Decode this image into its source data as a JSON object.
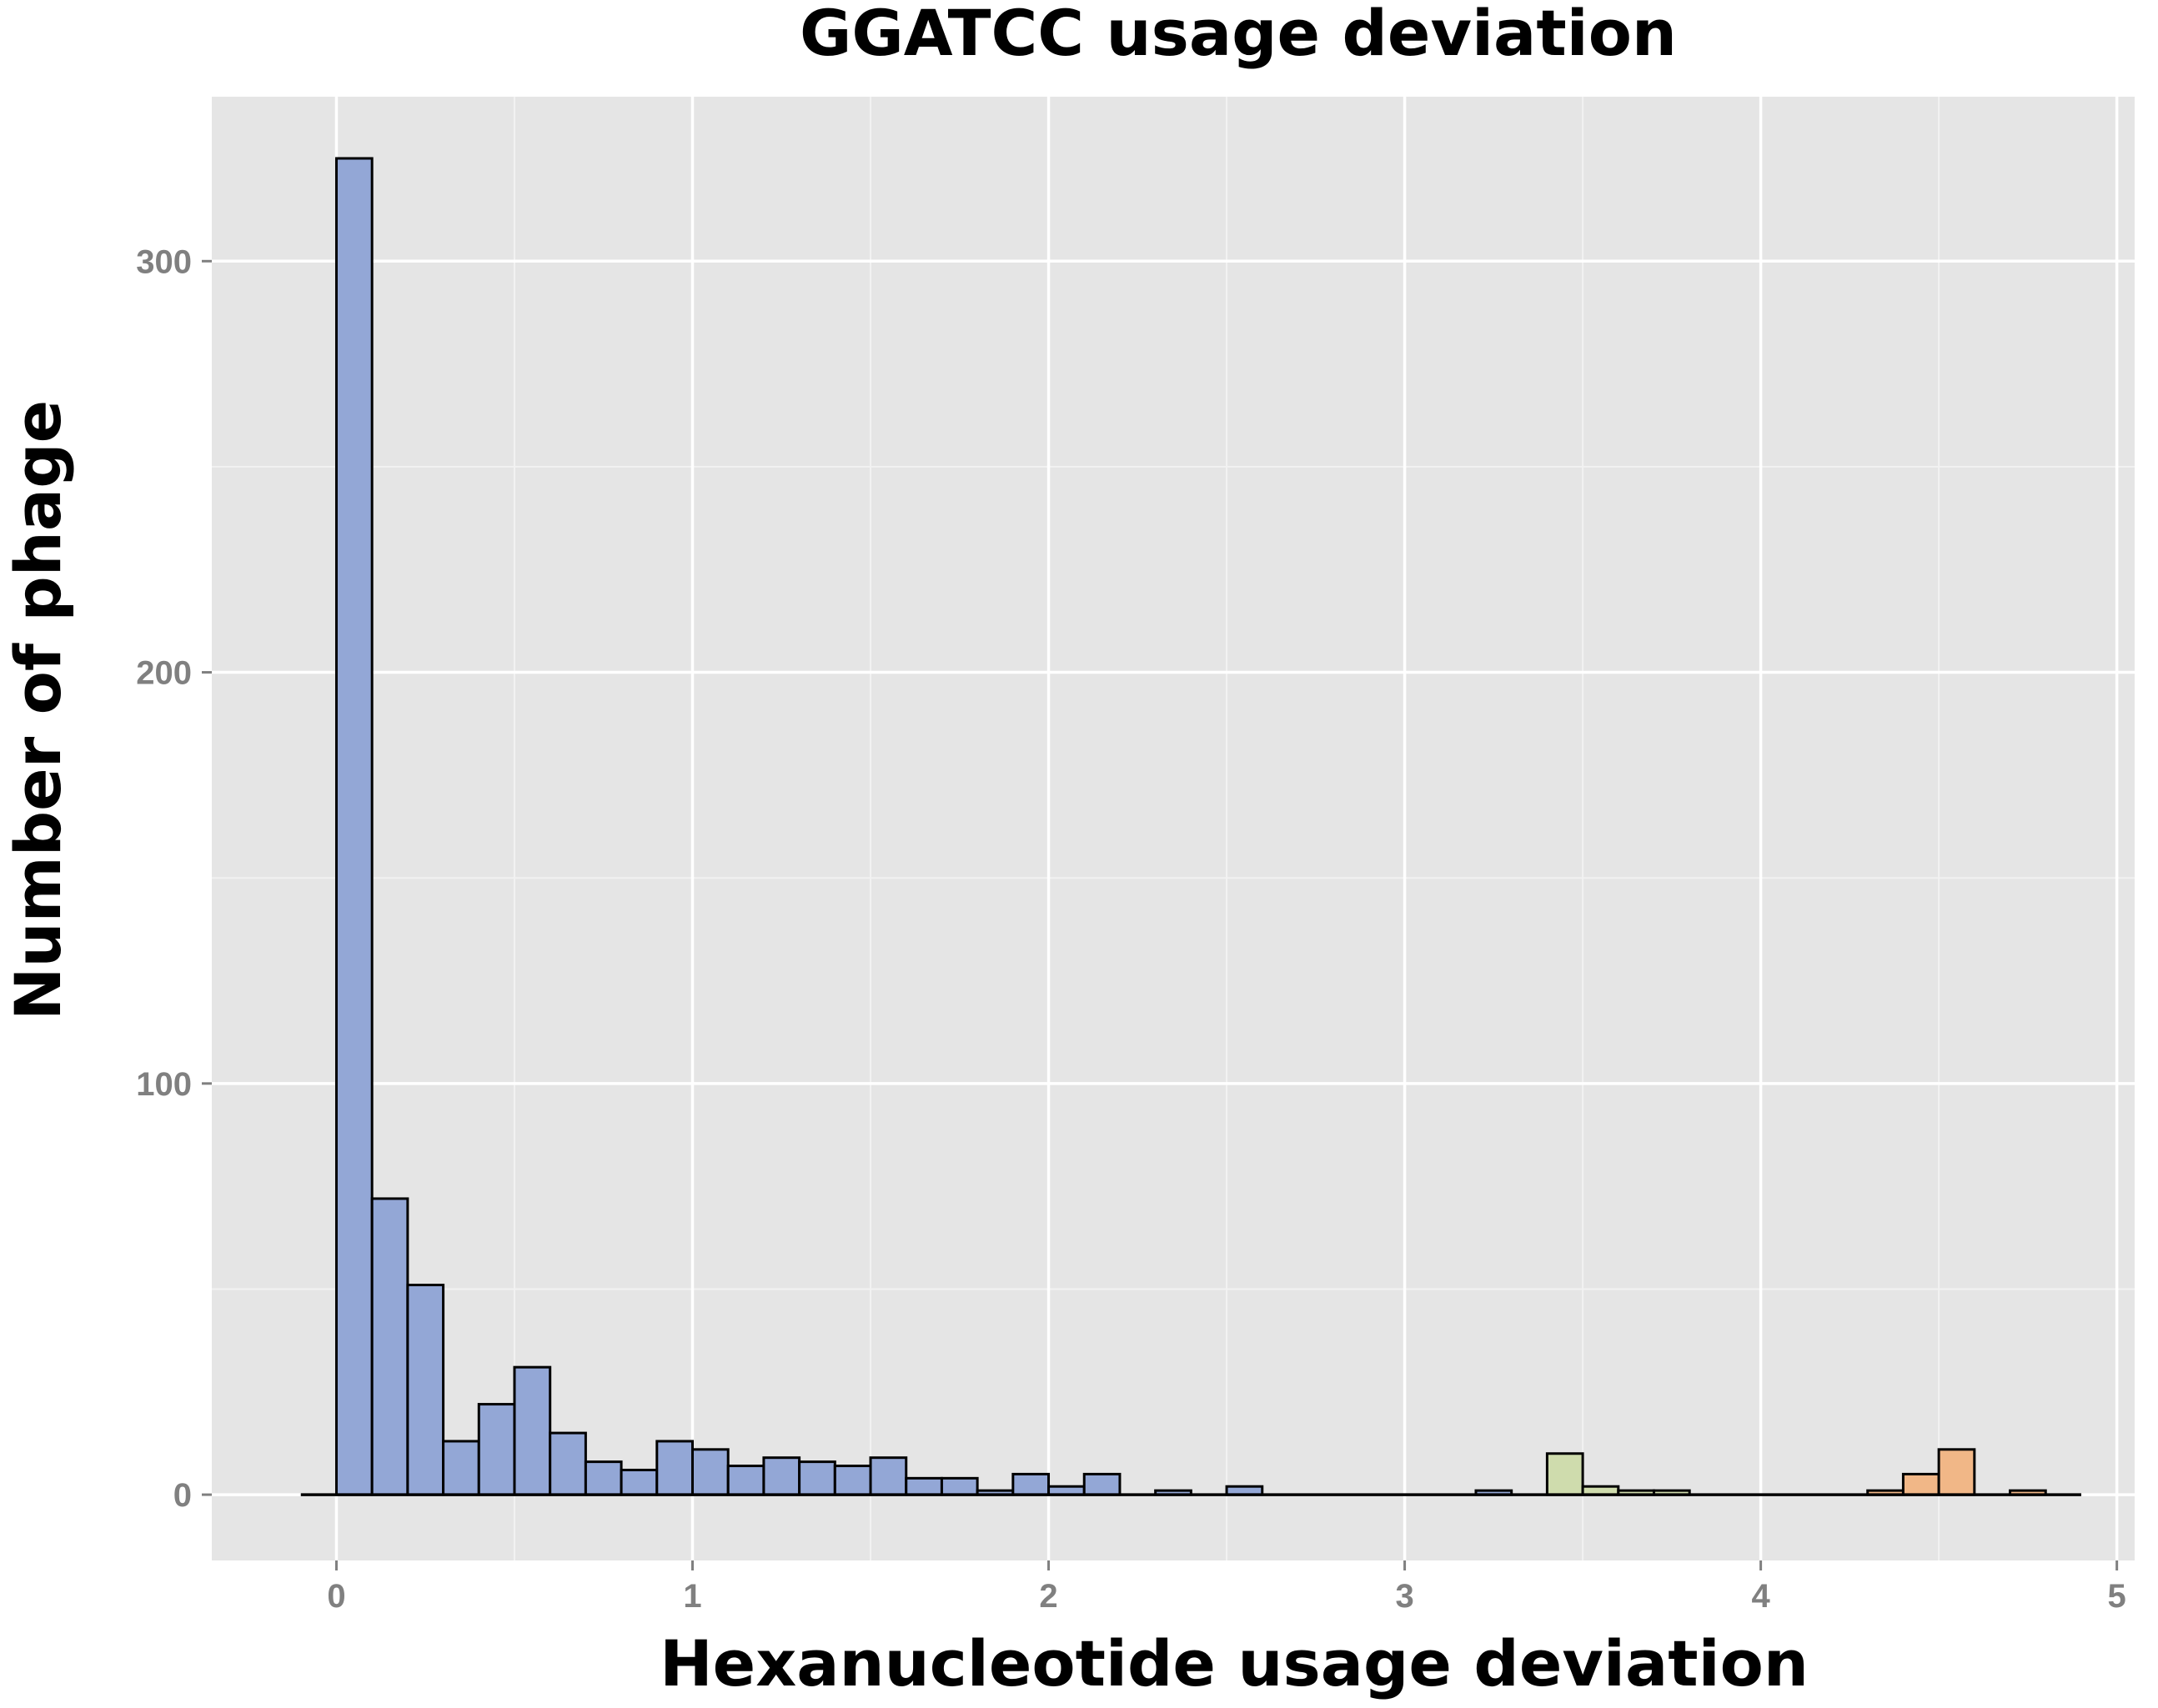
{
  "chart_data": {
    "type": "bar",
    "title": "GGATCC usage deviation",
    "xlabel": "Hexanucleotide usage deviation",
    "ylabel": "Number of phage",
    "xlim": [
      -0.35,
      5.05
    ],
    "ylim": [
      -16,
      340
    ],
    "x_ticks": [
      0,
      1,
      2,
      3,
      4,
      5
    ],
    "x_tick_labels": [
      "0",
      "1",
      "2",
      "3",
      "4",
      "5"
    ],
    "y_ticks": [
      0,
      100,
      200,
      300
    ],
    "y_tick_labels": [
      "0",
      "100",
      "200",
      "300"
    ],
    "grid": true,
    "legend": "none",
    "bin_width": 0.1,
    "colors": {
      "panel": "#e5e5e5",
      "grid_major": "#ffffff",
      "grid_minor": "#f2f2f2",
      "bar_stroke": "#000000",
      "tick": "#808080"
    },
    "series": [
      {
        "color": "#93a7d6",
        "bars": [
          {
            "x0": 0.0,
            "x1": 0.1,
            "value": 325
          },
          {
            "x0": 0.1,
            "x1": 0.2,
            "value": 72
          },
          {
            "x0": 0.2,
            "x1": 0.3,
            "value": 51
          },
          {
            "x0": 0.3,
            "x1": 0.4,
            "value": 13
          },
          {
            "x0": 0.4,
            "x1": 0.5,
            "value": 22
          },
          {
            "x0": 0.5,
            "x1": 0.6,
            "value": 31
          },
          {
            "x0": 0.6,
            "x1": 0.7,
            "value": 15
          },
          {
            "x0": 0.7,
            "x1": 0.8,
            "value": 8
          },
          {
            "x0": 0.8,
            "x1": 0.9,
            "value": 6
          },
          {
            "x0": 0.9,
            "x1": 1.0,
            "value": 13
          },
          {
            "x0": 1.0,
            "x1": 1.1,
            "value": 11
          },
          {
            "x0": 1.1,
            "x1": 1.2,
            "value": 7
          },
          {
            "x0": 1.2,
            "x1": 1.3,
            "value": 9
          },
          {
            "x0": 1.3,
            "x1": 1.4,
            "value": 8
          },
          {
            "x0": 1.4,
            "x1": 1.5,
            "value": 7
          },
          {
            "x0": 1.5,
            "x1": 1.6,
            "value": 9
          },
          {
            "x0": 1.6,
            "x1": 1.7,
            "value": 4
          },
          {
            "x0": 1.7,
            "x1": 1.8,
            "value": 4
          },
          {
            "x0": 1.8,
            "x1": 1.9,
            "value": 1
          },
          {
            "x0": 1.9,
            "x1": 2.0,
            "value": 5
          },
          {
            "x0": 2.0,
            "x1": 2.1,
            "value": 2
          },
          {
            "x0": 2.1,
            "x1": 2.2,
            "value": 5
          },
          {
            "x0": 2.3,
            "x1": 2.4,
            "value": 1
          },
          {
            "x0": 2.5,
            "x1": 2.6,
            "value": 2
          },
          {
            "x0": 3.2,
            "x1": 3.3,
            "value": 1
          }
        ]
      },
      {
        "color": "#cfdcad",
        "bars": [
          {
            "x0": 3.4,
            "x1": 3.5,
            "value": 10
          },
          {
            "x0": 3.5,
            "x1": 3.6,
            "value": 2
          },
          {
            "x0": 3.6,
            "x1": 3.7,
            "value": 1
          },
          {
            "x0": 3.7,
            "x1": 3.8,
            "value": 1
          }
        ]
      },
      {
        "color": "#f1b787",
        "bars": [
          {
            "x0": 4.3,
            "x1": 4.4,
            "value": 1
          },
          {
            "x0": 4.4,
            "x1": 4.5,
            "value": 5
          },
          {
            "x0": 4.5,
            "x1": 4.6,
            "value": 11
          },
          {
            "x0": 4.7,
            "x1": 4.8,
            "value": 1
          }
        ]
      }
    ],
    "baseline_x": [
      -0.1,
      4.9
    ]
  }
}
